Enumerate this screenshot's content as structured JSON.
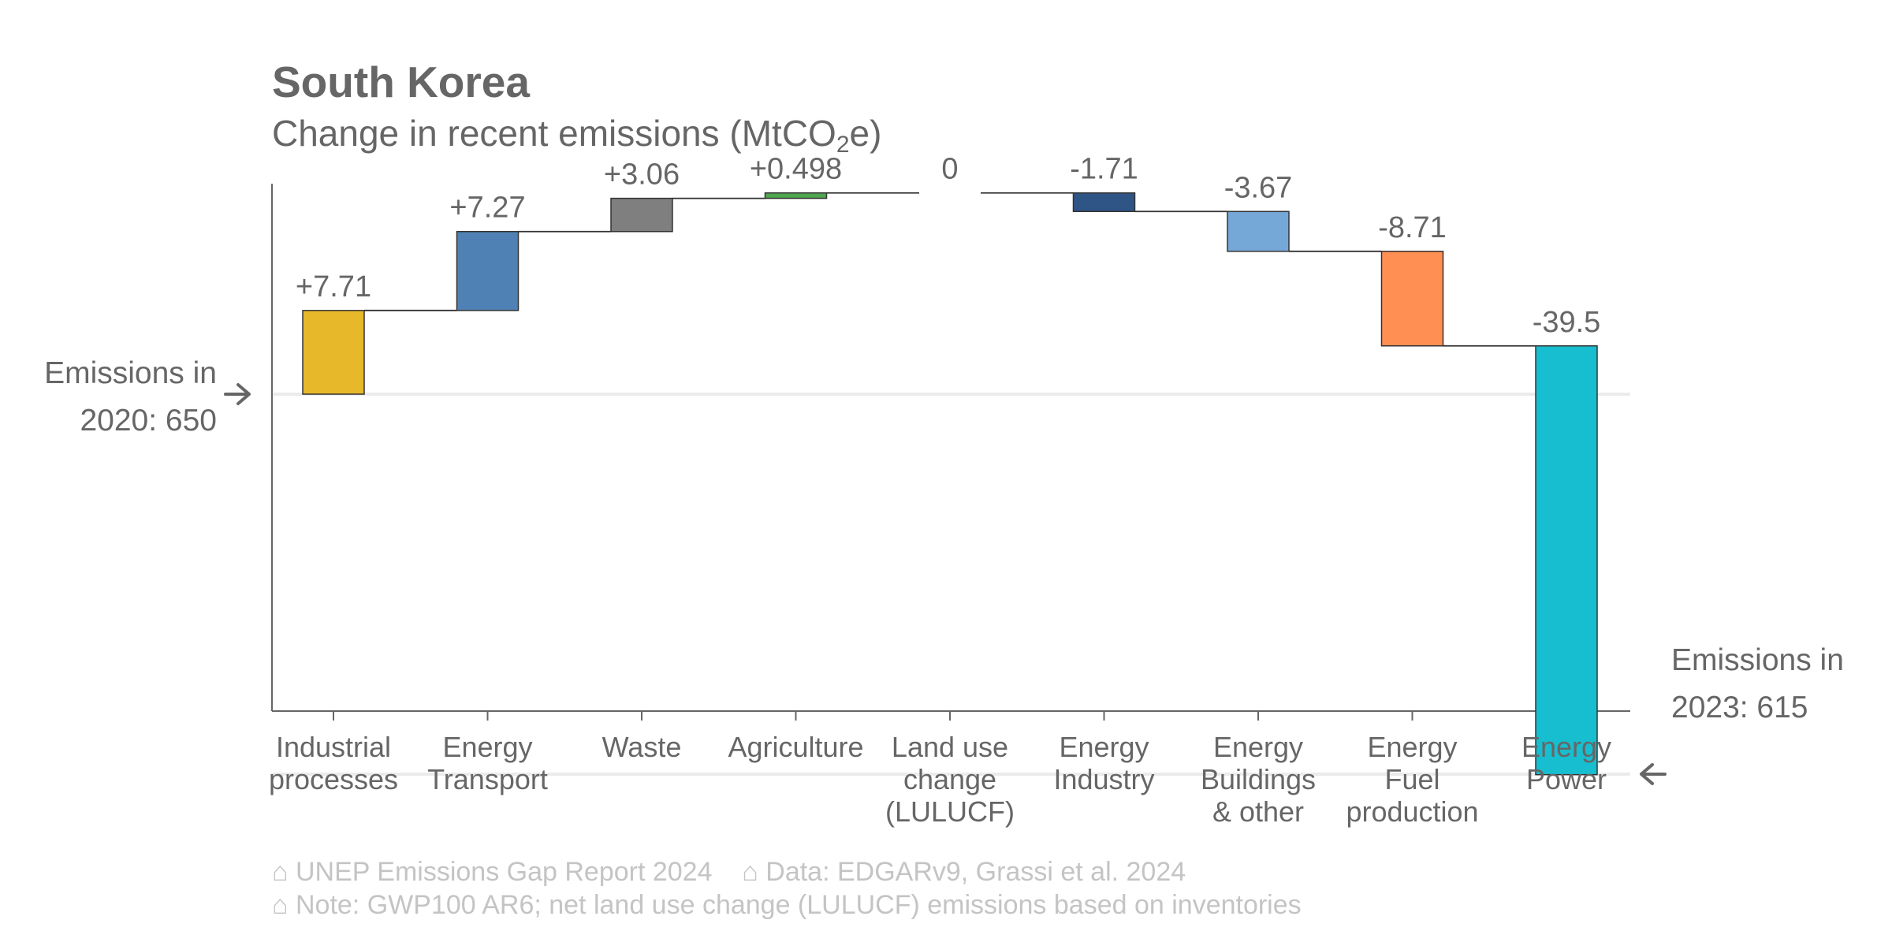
{
  "header": {
    "title": "South Korea",
    "subtitle_prefix": "Change in recent emissions (MtCO",
    "subtitle_sub": "2",
    "subtitle_suffix": "e)"
  },
  "annotations": {
    "start_line1": "Emissions in",
    "start_line2": "2020: 650",
    "end_line1": "Emissions in",
    "end_line2": "2023: 615"
  },
  "footer": {
    "line1": "⌂ UNEP Emissions Gap Report 2024    ⌂ Data: EDGARv9, Grassi et al. 2024",
    "line2": "⌂ Note: GWP100 AR6; net land use change (LULUCF) emissions based on inventories"
  },
  "chart_data": {
    "type": "bar",
    "subtype": "waterfall",
    "start_value": 650,
    "end_value": 615,
    "categories": [
      [
        "Industrial",
        "processes"
      ],
      [
        "Energy",
        "Transport"
      ],
      [
        "Waste"
      ],
      [
        "Agriculture"
      ],
      [
        "Land use",
        "change",
        "(LULUCF)"
      ],
      [
        "Energy",
        "Industry"
      ],
      [
        "Energy",
        "Buildings",
        "& other"
      ],
      [
        "Energy",
        "Fuel",
        "production"
      ],
      [
        "Energy",
        "Power"
      ]
    ],
    "values": [
      7.71,
      7.27,
      3.06,
      0.498,
      0,
      -1.71,
      -3.67,
      -8.71,
      -39.5
    ],
    "labels": [
      "+7.71",
      "+7.27",
      "+3.06",
      "+0.498",
      "0",
      "-1.71",
      "-3.67",
      "-8.71",
      "-39.5"
    ],
    "colors": [
      "#e6b82a",
      "#4f81b4",
      "#7f7f7f",
      "#4fa64f",
      "#4fa64f",
      "#2f5587",
      "#75a8d6",
      "#ff8f52",
      "#17becf"
    ],
    "ylim": [
      612,
      670
    ],
    "grid": false
  }
}
